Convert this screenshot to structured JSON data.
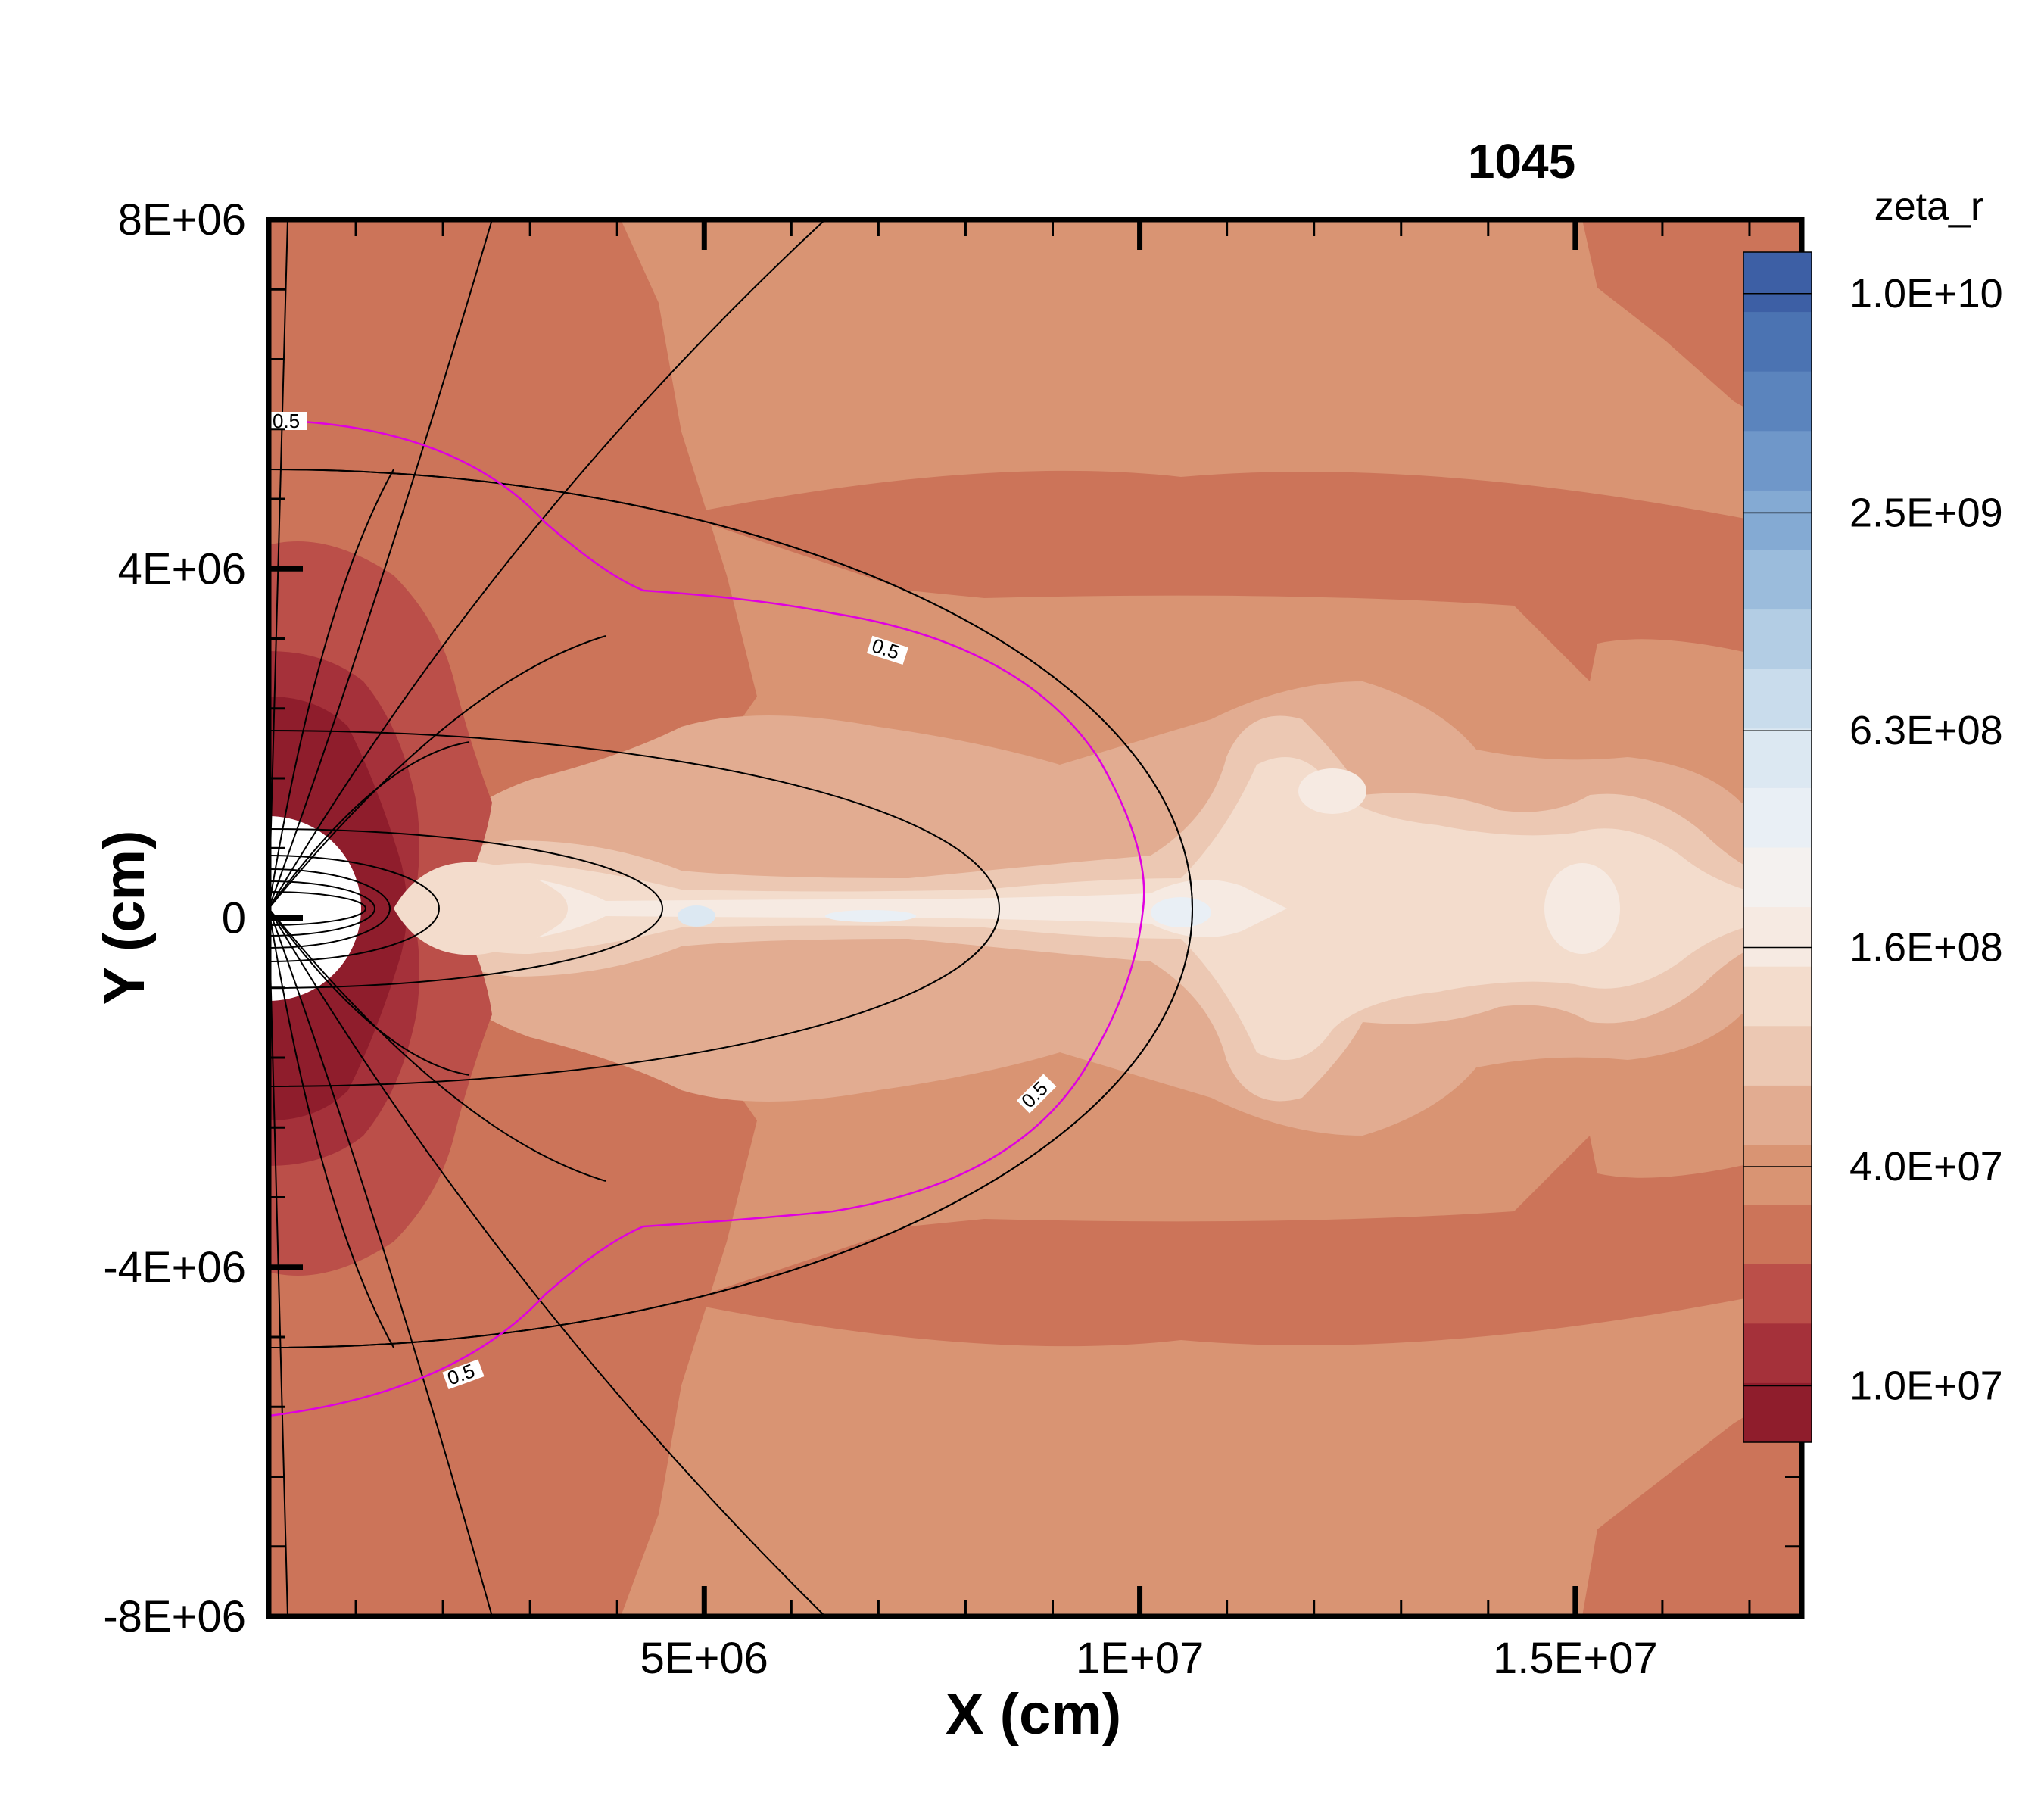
{
  "chart_data": {
    "type": "heatmap",
    "title": "1045",
    "xlabel": "X (cm)",
    "ylabel": "Y (cm)",
    "xlim": [
      0,
      17600000
    ],
    "ylim": [
      -8000000,
      8000000
    ],
    "x_ticks": [
      {
        "value": 5000000,
        "label": "5E+06"
      },
      {
        "value": 10000000,
        "label": "1E+07"
      },
      {
        "value": 15000000,
        "label": "1.5E+07"
      }
    ],
    "y_ticks": [
      {
        "value": 8000000,
        "label": "8E+06"
      },
      {
        "value": 4000000,
        "label": "4E+06"
      },
      {
        "value": 0,
        "label": "0"
      },
      {
        "value": -4000000,
        "label": "-4E+06"
      },
      {
        "value": -8000000,
        "label": "-8E+06"
      }
    ],
    "colorbar": {
      "title": "zeta_r",
      "scale": "log",
      "range": [
        7000000,
        13000000000
      ],
      "tick_labels": [
        "1.0E+10",
        "2.5E+09",
        "6.3E+08",
        "1.6E+08",
        "4.0E+07",
        "1.0E+07"
      ],
      "tick_values": [
        10000000000,
        2500000000,
        630000000,
        160000000,
        40000000,
        10000000
      ],
      "colors": [
        "#8f1d2c",
        "#a5313a",
        "#bb4f49",
        "#cc7459",
        "#d99473",
        "#e2ac91",
        "#ecc8b3",
        "#f3dccc",
        "#f6eae2",
        "#f4f1ef",
        "#e9eff5",
        "#dce8f2",
        "#c9dcec",
        "#b3cde4",
        "#9bbcdc",
        "#84aad3",
        "#6f97c9",
        "#5b84bd",
        "#4b73b2",
        "#3d5fa5"
      ]
    },
    "contour_levels": [
      {
        "level": "0.5",
        "color": "#e000e0"
      }
    ],
    "grid": false
  }
}
